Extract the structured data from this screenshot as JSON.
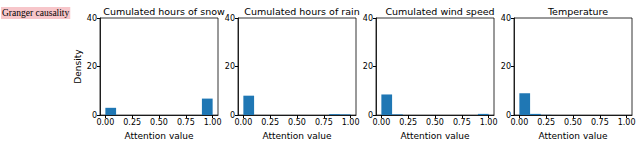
{
  "row_label": "Granger causality",
  "chart_data": [
    {
      "type": "histogram",
      "title": "Cumulated hours of snow",
      "bins": [
        0,
        0.1,
        0.2,
        0.3,
        0.4,
        0.5,
        0.6,
        0.7,
        0.8,
        0.9,
        1.0
      ],
      "values": [
        3,
        0,
        0,
        0,
        0,
        0,
        0,
        0,
        0,
        6.8
      ],
      "color": "#1f77b4",
      "xlabel": "Attention value",
      "ylabel": "Density",
      "xlim": [
        -0.05,
        1.05
      ],
      "xticks": [
        {
          "value": 0,
          "label": "0.00"
        },
        {
          "value": 0.25,
          "label": "0.25"
        },
        {
          "value": 0.5,
          "label": "0.50"
        },
        {
          "value": 0.75,
          "label": "0.75"
        },
        {
          "value": 1,
          "label": "1.00"
        }
      ],
      "ylim": [
        0,
        40
      ],
      "yticks": [
        0,
        20,
        40
      ]
    },
    {
      "type": "histogram",
      "title": "Cumulated hours of rain",
      "bins": [
        0,
        0.1,
        0.2,
        0.3,
        0.4,
        0.5,
        0.6,
        0.7,
        0.8,
        0.9,
        1.0
      ],
      "values": [
        8,
        0,
        0,
        0,
        0,
        0,
        0,
        0,
        0.4,
        0.3
      ],
      "color": "#1f77b4",
      "xlabel": "Attention value",
      "xlim": [
        -0.05,
        1.05
      ],
      "xticks": [
        {
          "value": 0,
          "label": "0.00"
        },
        {
          "value": 0.25,
          "label": "0.25"
        },
        {
          "value": 0.5,
          "label": "0.50"
        },
        {
          "value": 0.75,
          "label": "0.75"
        },
        {
          "value": 1,
          "label": "1.00"
        }
      ],
      "ylim": [
        0,
        40
      ],
      "yticks": [
        0,
        20,
        40
      ]
    },
    {
      "type": "histogram",
      "title": "Cumulated wind speed",
      "bins": [
        0,
        0.1,
        0.2,
        0.3,
        0.4,
        0.5,
        0.6,
        0.7,
        0.8,
        0.9,
        1.0
      ],
      "values": [
        8.5,
        0.3,
        0,
        0,
        0,
        0,
        0,
        0,
        0,
        0.5
      ],
      "color": "#1f77b4",
      "xlabel": "Attention value",
      "xlim": [
        -0.05,
        1.05
      ],
      "xticks": [
        {
          "value": 0,
          "label": "0.00"
        },
        {
          "value": 0.25,
          "label": "0.25"
        },
        {
          "value": 0.5,
          "label": "0.50"
        },
        {
          "value": 0.75,
          "label": "0.75"
        },
        {
          "value": 1,
          "label": "1.00"
        }
      ],
      "ylim": [
        0,
        40
      ],
      "yticks": [
        0,
        20,
        40
      ]
    },
    {
      "type": "histogram",
      "title": "Temperature",
      "bins": [
        0,
        0.1,
        0.2,
        0.3,
        0.4,
        0.5,
        0.6,
        0.7,
        0.8,
        0.9,
        1.0
      ],
      "values": [
        9,
        0.5,
        0.1,
        0,
        0,
        0,
        0,
        0,
        0,
        0
      ],
      "color": "#1f77b4",
      "xlabel": "Attention value",
      "xlim": [
        -0.05,
        1.05
      ],
      "xticks": [
        {
          "value": 0,
          "label": "0.00"
        },
        {
          "value": 0.25,
          "label": "0.25"
        },
        {
          "value": 0.5,
          "label": "0.50"
        },
        {
          "value": 0.75,
          "label": "0.75"
        },
        {
          "value": 1,
          "label": "1.00"
        }
      ],
      "ylim": [
        0,
        40
      ],
      "yticks": [
        0,
        20,
        40
      ]
    }
  ]
}
